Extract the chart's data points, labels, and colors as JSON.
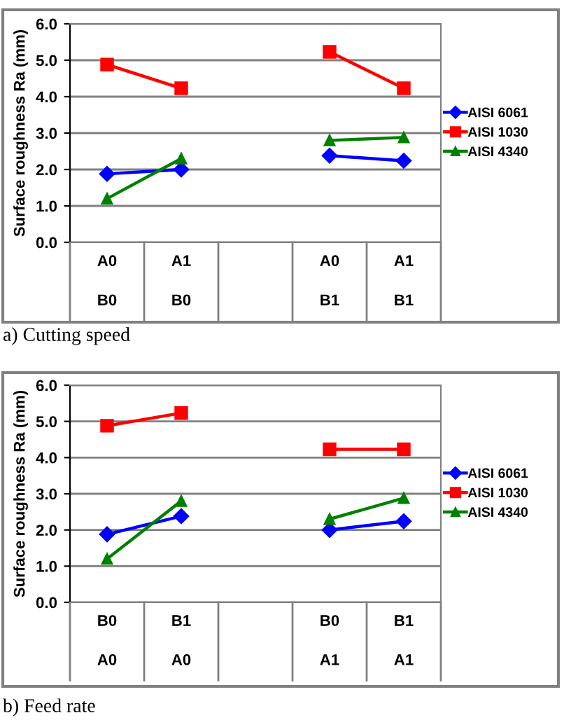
{
  "chart_data": [
    {
      "type": "line",
      "ylabel": "Surface roughness Ra (mm)",
      "categories": [
        "A0\nB0",
        "A1\nB0",
        null,
        "A0\nB1",
        "A1\nB1"
      ],
      "ylim": [
        0,
        6
      ],
      "yticks": [
        {
          "value": 0,
          "label": "0.0"
        },
        {
          "value": 1,
          "label": "1.0"
        },
        {
          "value": 2,
          "label": "2.0"
        },
        {
          "value": 3,
          "label": "3.0"
        },
        {
          "value": 4,
          "label": "4.0"
        },
        {
          "value": 5,
          "label": "5.0"
        },
        {
          "value": 6,
          "label": "6.0"
        }
      ],
      "grid": "y",
      "legend": "right",
      "annotations": [
        "a) Cutting speed"
      ],
      "series": [
        {
          "name": "AISI 6061",
          "color": "#0000ff",
          "marker": "diamond",
          "values": [
            1.88,
            2.0,
            null,
            2.38,
            2.24
          ]
        },
        {
          "name": "AISI 1030",
          "color": "#ff0000",
          "marker": "square",
          "values": [
            4.88,
            4.23,
            null,
            5.23,
            4.23
          ]
        },
        {
          "name": "AISI 4340",
          "color": "#008000",
          "marker": "triangle",
          "values": [
            1.2,
            2.3,
            null,
            2.8,
            2.88
          ]
        }
      ]
    },
    {
      "type": "line",
      "ylabel": "Surface roughness Ra (mm)",
      "categories": [
        "B0\nA0",
        "B1\nA0",
        null,
        "B0\nA1",
        "B1\nA1"
      ],
      "ylim": [
        0,
        6
      ],
      "yticks": [
        {
          "value": 0,
          "label": "0.0"
        },
        {
          "value": 1,
          "label": "1.0"
        },
        {
          "value": 2,
          "label": "2.0"
        },
        {
          "value": 3,
          "label": "3.0"
        },
        {
          "value": 4,
          "label": "4.0"
        },
        {
          "value": 5,
          "label": "5.0"
        },
        {
          "value": 6,
          "label": "6.0"
        }
      ],
      "grid": "y",
      "legend": "right",
      "annotations": [
        "b) Feed rate"
      ],
      "series": [
        {
          "name": "AISI 6061",
          "color": "#0000ff",
          "marker": "diamond",
          "values": [
            1.88,
            2.38,
            null,
            2.0,
            2.24
          ]
        },
        {
          "name": "AISI 1030",
          "color": "#ff0000",
          "marker": "square",
          "values": [
            4.88,
            5.23,
            null,
            4.23,
            4.23
          ]
        },
        {
          "name": "AISI 4340",
          "color": "#008000",
          "marker": "triangle",
          "values": [
            1.2,
            2.8,
            null,
            2.3,
            2.88
          ]
        }
      ]
    }
  ]
}
